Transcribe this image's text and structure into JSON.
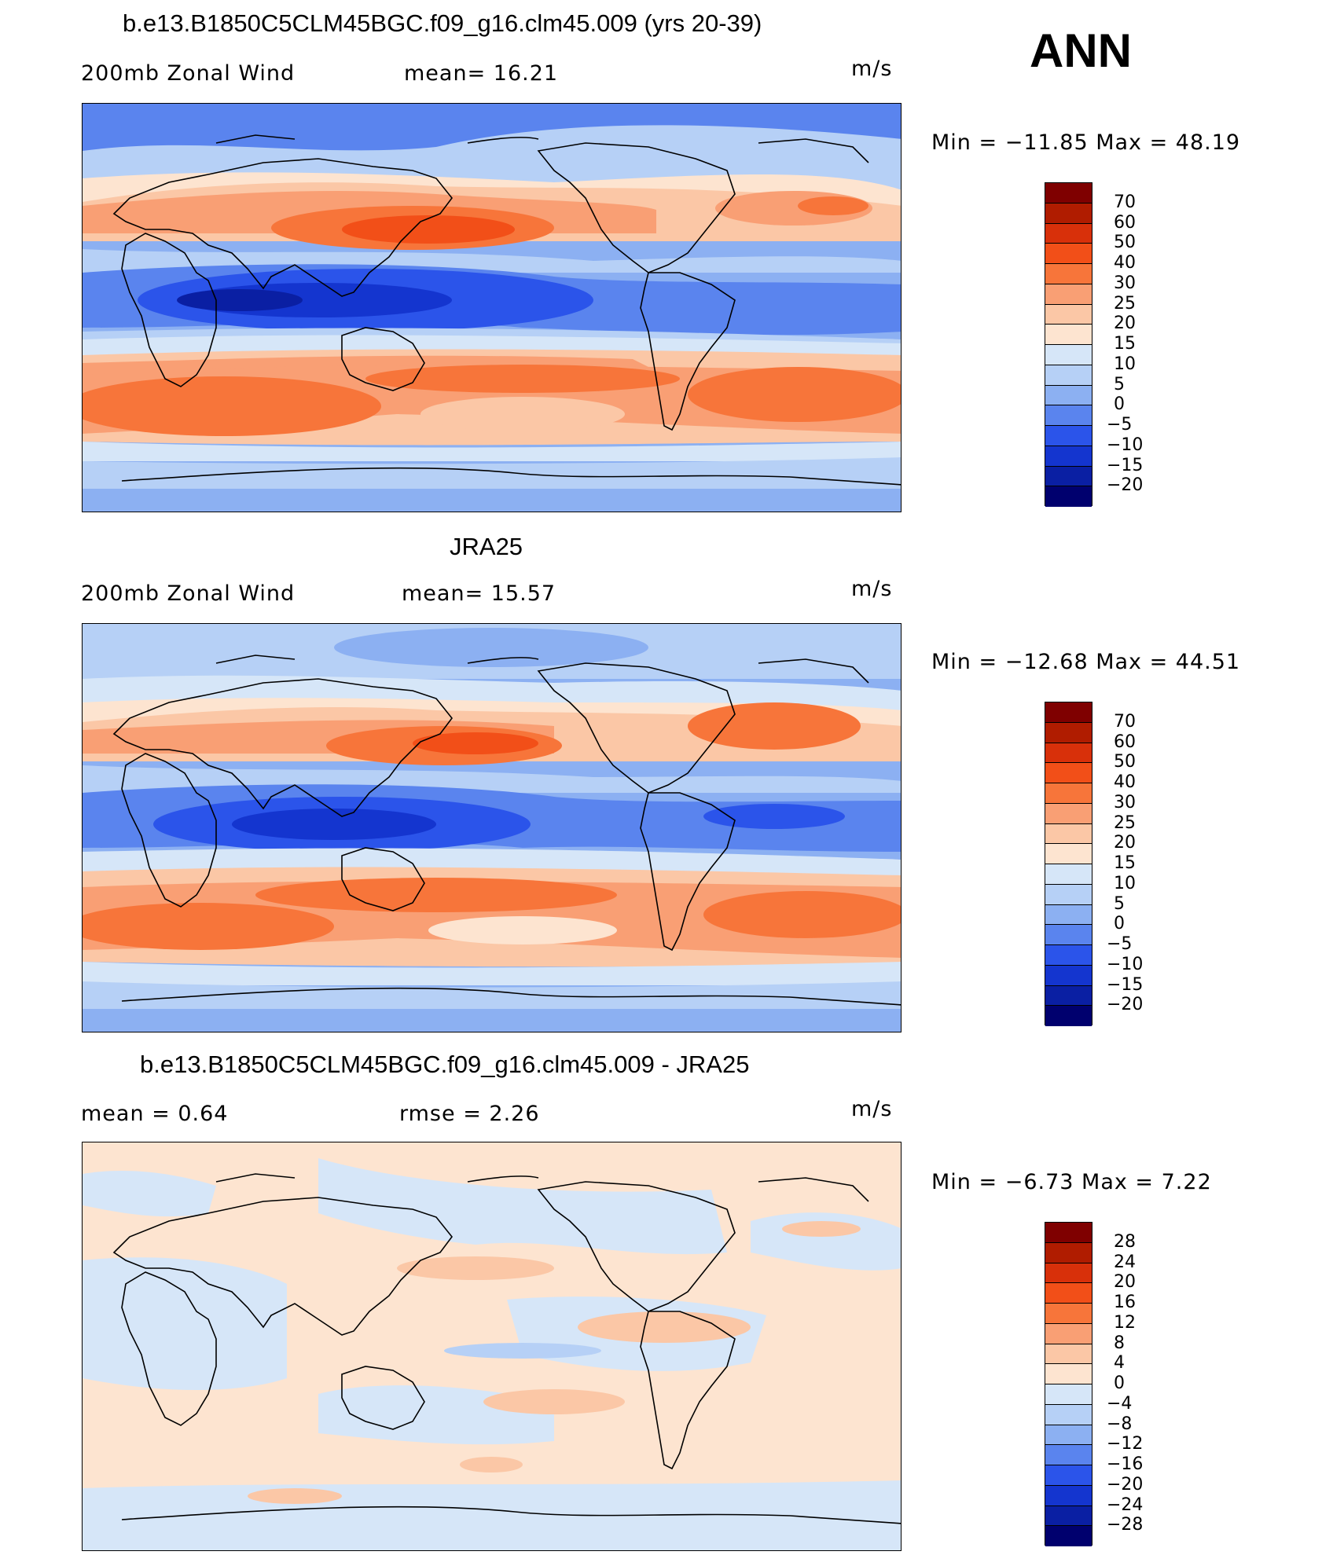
{
  "season_label": "ANN",
  "panels": [
    {
      "id": "model",
      "title": "b.e13.B1850C5CLM45BGC.f09_g16.clm45.009 (yrs 20-39)",
      "left_label": "200mb  Zonal  Wind",
      "center_label": "mean=   16.21",
      "unit": "m/s",
      "stats": "Min  =  −11.85  Max  =    48.19",
      "legend_labels": [
        "70",
        "60",
        "50",
        "40",
        "30",
        "25",
        "20",
        "15",
        "10",
        "5",
        "0",
        "−5",
        "−10",
        "−15",
        "−20"
      ]
    },
    {
      "id": "obs",
      "title": "JRA25",
      "left_label": "200mb  Zonal  Wind",
      "center_label": "mean=   15.57",
      "unit": "m/s",
      "stats": "Min  =  −12.68  Max  =    44.51",
      "legend_labels": [
        "70",
        "60",
        "50",
        "40",
        "30",
        "25",
        "20",
        "15",
        "10",
        "5",
        "0",
        "−5",
        "−10",
        "−15",
        "−20"
      ]
    },
    {
      "id": "diff",
      "title": "b.e13.B1850C5CLM45BGC.f09_g16.clm45.009 - JRA25",
      "left_label": "mean  =      0.64",
      "center_label": "rmse  =      2.26",
      "unit": "m/s",
      "stats": "Min  =     −6.73  Max  =      7.22",
      "legend_labels": [
        "28",
        "24",
        "20",
        "16",
        "12",
        "8",
        "4",
        "0",
        "−4",
        "−8",
        "−12",
        "−16",
        "−20",
        "−24",
        "−28"
      ]
    }
  ],
  "colors": {
    "scale": [
      "#7f0000",
      "#b01c00",
      "#d8300a",
      "#f24f18",
      "#f7753a",
      "#f99f74",
      "#fbc7a6",
      "#fde4d0",
      "#d6e6f8",
      "#b6d0f6",
      "#8cb0f2",
      "#5a84ee",
      "#2b54ea",
      "#1435cf",
      "#0a1fa3",
      "#00006e"
    ]
  }
}
